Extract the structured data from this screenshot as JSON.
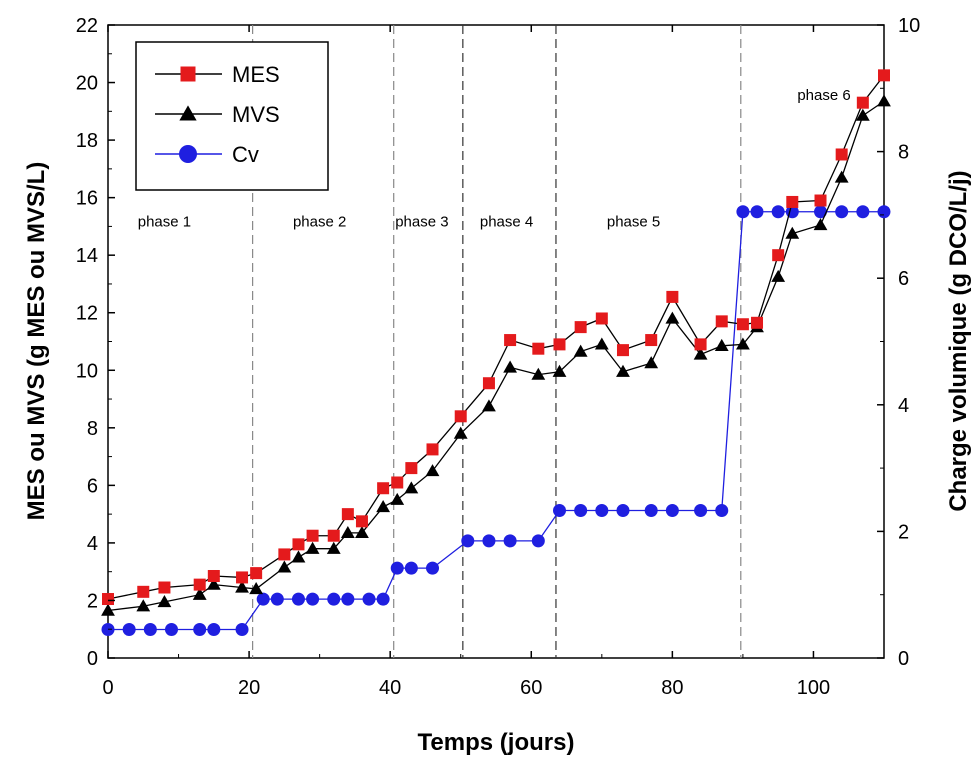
{
  "chart_data": {
    "type": "line",
    "xlabel": "Temps (jours)",
    "ylabel_left": "MES ou MVS (g MES ou MVS/L)",
    "ylabel_right": "Charge volumique (g DCO/L/j)",
    "xlim": [
      0,
      110
    ],
    "ylim_left": [
      0,
      22
    ],
    "ylim_right": [
      0,
      10
    ],
    "xticks": [
      0,
      20,
      40,
      60,
      80,
      100
    ],
    "yticks_left": [
      0,
      2,
      4,
      6,
      8,
      10,
      12,
      14,
      16,
      18,
      20,
      22
    ],
    "yticks_right": [
      0,
      2,
      4,
      6,
      8,
      10
    ],
    "grid": false,
    "legend_position": "top-left",
    "phase_boundaries": [
      20.5,
      40.5,
      50.3,
      63.5,
      89.7
    ],
    "phases": [
      {
        "label": "phase 1",
        "x": 8
      },
      {
        "label": "phase 2",
        "x": 30
      },
      {
        "label": "phase 3",
        "x": 44.5
      },
      {
        "label": "phase 4",
        "x": 56.5
      },
      {
        "label": "phase 5",
        "x": 74.5
      },
      {
        "label": "phase 6",
        "x": 101.5
      }
    ],
    "series": [
      {
        "name": "MES",
        "axis": "left",
        "color": "#e41a1c",
        "marker": "square",
        "x": [
          0,
          5,
          8,
          13,
          15,
          19,
          21,
          25,
          27,
          29,
          32,
          34,
          36,
          39,
          41,
          43,
          46,
          50,
          54,
          57,
          61,
          64,
          67,
          70,
          73,
          77,
          80,
          84,
          87,
          90,
          92,
          95,
          97,
          101,
          104,
          107,
          110
        ],
        "y": [
          2.05,
          2.3,
          2.45,
          2.55,
          2.85,
          2.8,
          2.95,
          3.6,
          3.95,
          4.25,
          4.25,
          5.0,
          4.75,
          5.9,
          6.1,
          6.6,
          7.25,
          8.4,
          9.55,
          11.05,
          10.75,
          10.9,
          11.5,
          11.8,
          10.7,
          11.05,
          12.55,
          10.9,
          11.7,
          11.6,
          11.65,
          14.0,
          15.85,
          15.9,
          17.5,
          19.3,
          20.25
        ]
      },
      {
        "name": "MVS",
        "axis": "left",
        "color": "#000000",
        "marker": "triangle",
        "x": [
          0,
          5,
          8,
          13,
          15,
          19,
          21,
          25,
          27,
          29,
          32,
          34,
          36,
          39,
          41,
          43,
          46,
          50,
          54,
          57,
          61,
          64,
          67,
          70,
          73,
          77,
          80,
          84,
          87,
          90,
          92,
          95,
          97,
          101,
          104,
          107,
          110
        ],
        "y": [
          1.65,
          1.8,
          1.95,
          2.2,
          2.55,
          2.45,
          2.4,
          3.15,
          3.5,
          3.8,
          3.8,
          4.35,
          4.35,
          5.25,
          5.5,
          5.9,
          6.5,
          7.8,
          8.75,
          10.1,
          9.85,
          9.95,
          10.65,
          10.9,
          9.95,
          10.25,
          11.8,
          10.55,
          10.85,
          10.9,
          11.5,
          13.25,
          14.75,
          15.05,
          16.7,
          18.85,
          19.35
        ]
      },
      {
        "name": "Cv",
        "axis": "right",
        "color": "#1f1fe0",
        "marker": "circle",
        "x": [
          0,
          3,
          6,
          9,
          13,
          15,
          19,
          22,
          24,
          27,
          29,
          32,
          34,
          37,
          39,
          41,
          43,
          46,
          51,
          54,
          57,
          61,
          64,
          67,
          70,
          73,
          77,
          80,
          84,
          87,
          90,
          92,
          95,
          97,
          101,
          104,
          107,
          110
        ],
        "y": [
          0.45,
          0.45,
          0.45,
          0.45,
          0.45,
          0.45,
          0.45,
          0.93,
          0.93,
          0.93,
          0.93,
          0.93,
          0.93,
          0.93,
          0.93,
          1.42,
          1.42,
          1.42,
          1.85,
          1.85,
          1.85,
          1.85,
          2.33,
          2.33,
          2.33,
          2.33,
          2.33,
          2.33,
          2.33,
          2.33,
          7.05,
          7.05,
          7.05,
          7.05,
          7.05,
          7.05,
          7.05,
          7.05
        ]
      }
    ]
  }
}
